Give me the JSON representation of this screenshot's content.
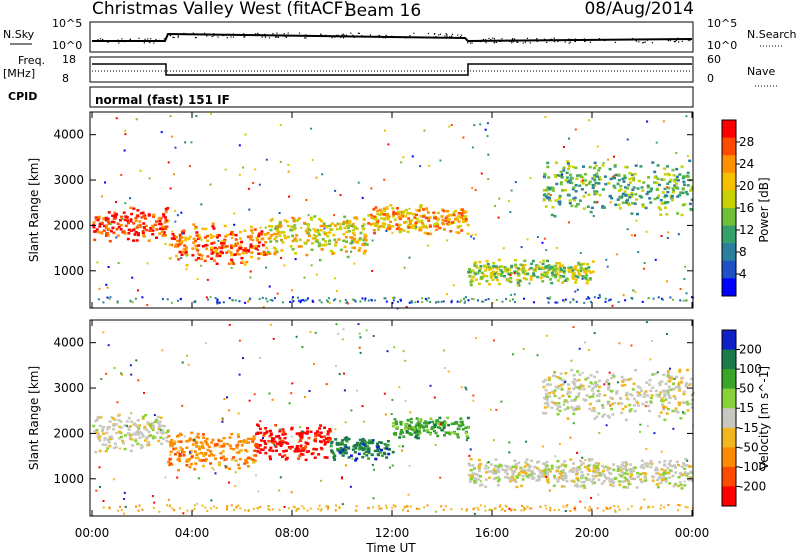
{
  "header": {
    "site": "Christmas Valley West (fitACF)",
    "beam": "Beam 16",
    "date": "08/Aug/2014"
  },
  "info_panel": {
    "nsky_label": "N.Sky",
    "nsearch_label": "N.Search",
    "freq_label_1": "Freq.",
    "freq_label_2": "[MHz]",
    "nave_label": "Nave",
    "cpid_label": "CPID",
    "cpid_text": "normal (fast) 151 IF",
    "noise_ticks_left": [
      "10^5",
      "10^0"
    ],
    "noise_ticks_right": [
      "10^5",
      "10^0"
    ],
    "freq_ticks": [
      "18",
      "8"
    ],
    "nave_ticks": [
      "60",
      "0"
    ]
  },
  "power_colorbar": {
    "title": "Power [dB]",
    "ticks": [
      "28",
      "24",
      "20",
      "16",
      "12",
      "8",
      "4"
    ],
    "colors": [
      "#ff0000",
      "#ff4a00",
      "#ff9000",
      "#f5c000",
      "#c8d200",
      "#6fbf3a",
      "#35a06a",
      "#2a7f9e",
      "#1f50c4",
      "#0000ff"
    ]
  },
  "velocity_colorbar": {
    "title": "Velocity [m s^-1]",
    "ticks": [
      "200",
      "100",
      "50",
      "15",
      "-15",
      "-50",
      "-100",
      "-200"
    ],
    "colors": [
      "#1020c8",
      "#1a7a4a",
      "#3aa52a",
      "#8ad23a",
      "#c8c8c0",
      "#f0b81e",
      "#ff8a00",
      "#ff4a00",
      "#ff0000"
    ]
  },
  "chart_data": [
    {
      "type": "heatmap",
      "panel": "power",
      "ylabel": "Slant Range [km]",
      "x_range": [
        "00:00",
        "24:00"
      ],
      "ylim": [
        180,
        4500
      ],
      "yticks": [
        1000,
        2000,
        3000,
        4000
      ],
      "bands": [
        {
          "t0": 0.0,
          "t1": 3.0,
          "r0": 1650,
          "r1": 2450,
          "level": 24
        },
        {
          "t0": 3.0,
          "t1": 7.0,
          "r0": 1100,
          "r1": 2100,
          "level": 22
        },
        {
          "t0": 7.0,
          "t1": 11.0,
          "r0": 1300,
          "r1": 2300,
          "level": 15
        },
        {
          "t0": 11.0,
          "t1": 15.0,
          "r0": 1800,
          "r1": 2500,
          "level": 19
        },
        {
          "t0": 15.0,
          "t1": 20.0,
          "r0": 700,
          "r1": 1300,
          "level": 13
        },
        {
          "t0": 18.0,
          "t1": 24.0,
          "r0": 2200,
          "r1": 3500,
          "level": 11
        }
      ]
    },
    {
      "type": "heatmap",
      "panel": "velocity",
      "ylabel": "Slant Range [km]",
      "xlabel": "Time UT",
      "x_range": [
        "00:00",
        "24:00"
      ],
      "ylim": [
        180,
        4500
      ],
      "yticks": [
        1000,
        2000,
        3000,
        4000
      ],
      "bands": [
        {
          "t0": 0.0,
          "t1": 3.0,
          "r0": 1600,
          "r1": 2500,
          "v": 0
        },
        {
          "t0": 3.0,
          "t1": 6.5,
          "r0": 1200,
          "r1": 2100,
          "v": -60
        },
        {
          "t0": 6.5,
          "t1": 9.5,
          "r0": 1400,
          "r1": 2300,
          "v": -180
        },
        {
          "t0": 9.5,
          "t1": 12.0,
          "r0": 1400,
          "r1": 2000,
          "v": 80
        },
        {
          "t0": 12.0,
          "t1": 15.0,
          "r0": 1900,
          "r1": 2400,
          "v": 30
        },
        {
          "t0": 15.0,
          "t1": 24.0,
          "r0": 800,
          "r1": 1500,
          "v": 0
        },
        {
          "t0": 18.0,
          "t1": 24.0,
          "r0": 2300,
          "r1": 3500,
          "v": 0
        }
      ]
    }
  ],
  "xaxis": {
    "ticks": [
      "00:00",
      "04:00",
      "08:00",
      "12:00",
      "16:00",
      "20:00",
      "00:00"
    ],
    "label": "Time UT"
  }
}
